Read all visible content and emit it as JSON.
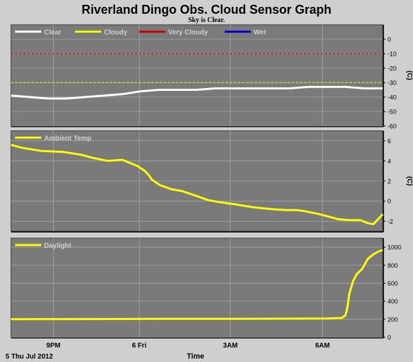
{
  "header": {
    "title": "Riverland Dingo Obs. Cloud Sensor Graph",
    "status": "Sky is Clear."
  },
  "footer": {
    "date": "5 Thu Jul 2012",
    "xlabel": "Time"
  },
  "colors": {
    "background": "#cfcfcf",
    "plot": "#7a7a7a",
    "grid": "#a6a6a6",
    "clear": "#ffffff",
    "cloudy": "#ffff00",
    "very_cloudy": "#cc0000",
    "wet": "#0000cc",
    "legend_text": "#d0d0d0"
  },
  "chart_data": [
    {
      "type": "line",
      "ylabel": "(C)",
      "ylim": [
        -60,
        10
      ],
      "yticks": [
        0,
        -10,
        -20,
        -30,
        -40,
        -50,
        -60
      ],
      "x_ticks": [
        "9PM",
        "6 Fri",
        "3AM",
        "6AM"
      ],
      "thresholds": [
        {
          "name": "Cloudy",
          "value": -30,
          "color": "#ffff00"
        },
        {
          "name": "Very Cloudy",
          "value": -10,
          "color": "#cc0000"
        }
      ],
      "series": [
        {
          "name": "Clear",
          "color": "#ffffff",
          "points": [
            [
              0,
              -39
            ],
            [
              0.05,
              -40
            ],
            [
              0.1,
              -41
            ],
            [
              0.15,
              -41
            ],
            [
              0.2,
              -40
            ],
            [
              0.25,
              -39
            ],
            [
              0.3,
              -38
            ],
            [
              0.35,
              -36
            ],
            [
              0.4,
              -35
            ],
            [
              0.45,
              -35
            ],
            [
              0.5,
              -35
            ],
            [
              0.55,
              -34
            ],
            [
              0.6,
              -34
            ],
            [
              0.65,
              -34
            ],
            [
              0.7,
              -34
            ],
            [
              0.75,
              -34
            ],
            [
              0.8,
              -33
            ],
            [
              0.85,
              -33
            ],
            [
              0.9,
              -33
            ],
            [
              0.95,
              -34
            ],
            [
              1,
              -34
            ]
          ]
        },
        {
          "name": "Cloudy",
          "color": "#ffff00",
          "points": []
        },
        {
          "name": "Very Cloudy",
          "color": "#cc0000",
          "points": []
        },
        {
          "name": "Wet",
          "color": "#0000cc",
          "points": []
        }
      ]
    },
    {
      "type": "line",
      "ylabel": "(C)",
      "ylim": [
        -3,
        7
      ],
      "yticks": [
        6,
        4,
        2,
        0,
        -2
      ],
      "x_ticks": [
        "9PM",
        "6 Fri",
        "3AM",
        "6AM"
      ],
      "series": [
        {
          "name": "Ambient Temp",
          "color": "#ffff00",
          "points": [
            [
              0,
              5.6
            ],
            [
              0.03,
              5.3
            ],
            [
              0.08,
              5.0
            ],
            [
              0.14,
              4.9
            ],
            [
              0.19,
              4.6
            ],
            [
              0.22,
              4.3
            ],
            [
              0.26,
              4.0
            ],
            [
              0.3,
              4.1
            ],
            [
              0.34,
              3.5
            ],
            [
              0.36,
              3.0
            ],
            [
              0.37,
              2.6
            ],
            [
              0.38,
              2.1
            ],
            [
              0.4,
              1.6
            ],
            [
              0.43,
              1.2
            ],
            [
              0.46,
              1.0
            ],
            [
              0.5,
              0.5
            ],
            [
              0.53,
              0.1
            ],
            [
              0.56,
              -0.1
            ],
            [
              0.6,
              -0.3
            ],
            [
              0.65,
              -0.6
            ],
            [
              0.7,
              -0.8
            ],
            [
              0.74,
              -0.9
            ],
            [
              0.77,
              -0.9
            ],
            [
              0.79,
              -1.0
            ],
            [
              0.83,
              -1.3
            ],
            [
              0.88,
              -1.8
            ],
            [
              0.91,
              -1.9
            ],
            [
              0.94,
              -1.9
            ],
            [
              0.96,
              -2.2
            ],
            [
              0.975,
              -2.3
            ],
            [
              1,
              -1.3
            ]
          ]
        }
      ]
    },
    {
      "type": "line",
      "ylim": [
        0,
        1100
      ],
      "yticks": [
        1000,
        800,
        600,
        400,
        200,
        0
      ],
      "x_ticks": [
        "9PM",
        "6 Fri",
        "3AM",
        "6AM"
      ],
      "series": [
        {
          "name": "Daylight",
          "color": "#ffff00",
          "points": [
            [
              0,
              200
            ],
            [
              0.2,
              202
            ],
            [
              0.4,
              204
            ],
            [
              0.6,
              205
            ],
            [
              0.75,
              206
            ],
            [
              0.85,
              208
            ],
            [
              0.89,
              214
            ],
            [
              0.9,
              245
            ],
            [
              0.905,
              330
            ],
            [
              0.91,
              480
            ],
            [
              0.92,
              620
            ],
            [
              0.93,
              700
            ],
            [
              0.945,
              760
            ],
            [
              0.96,
              870
            ],
            [
              0.975,
              920
            ],
            [
              0.99,
              955
            ],
            [
              1,
              968
            ]
          ]
        }
      ]
    }
  ]
}
